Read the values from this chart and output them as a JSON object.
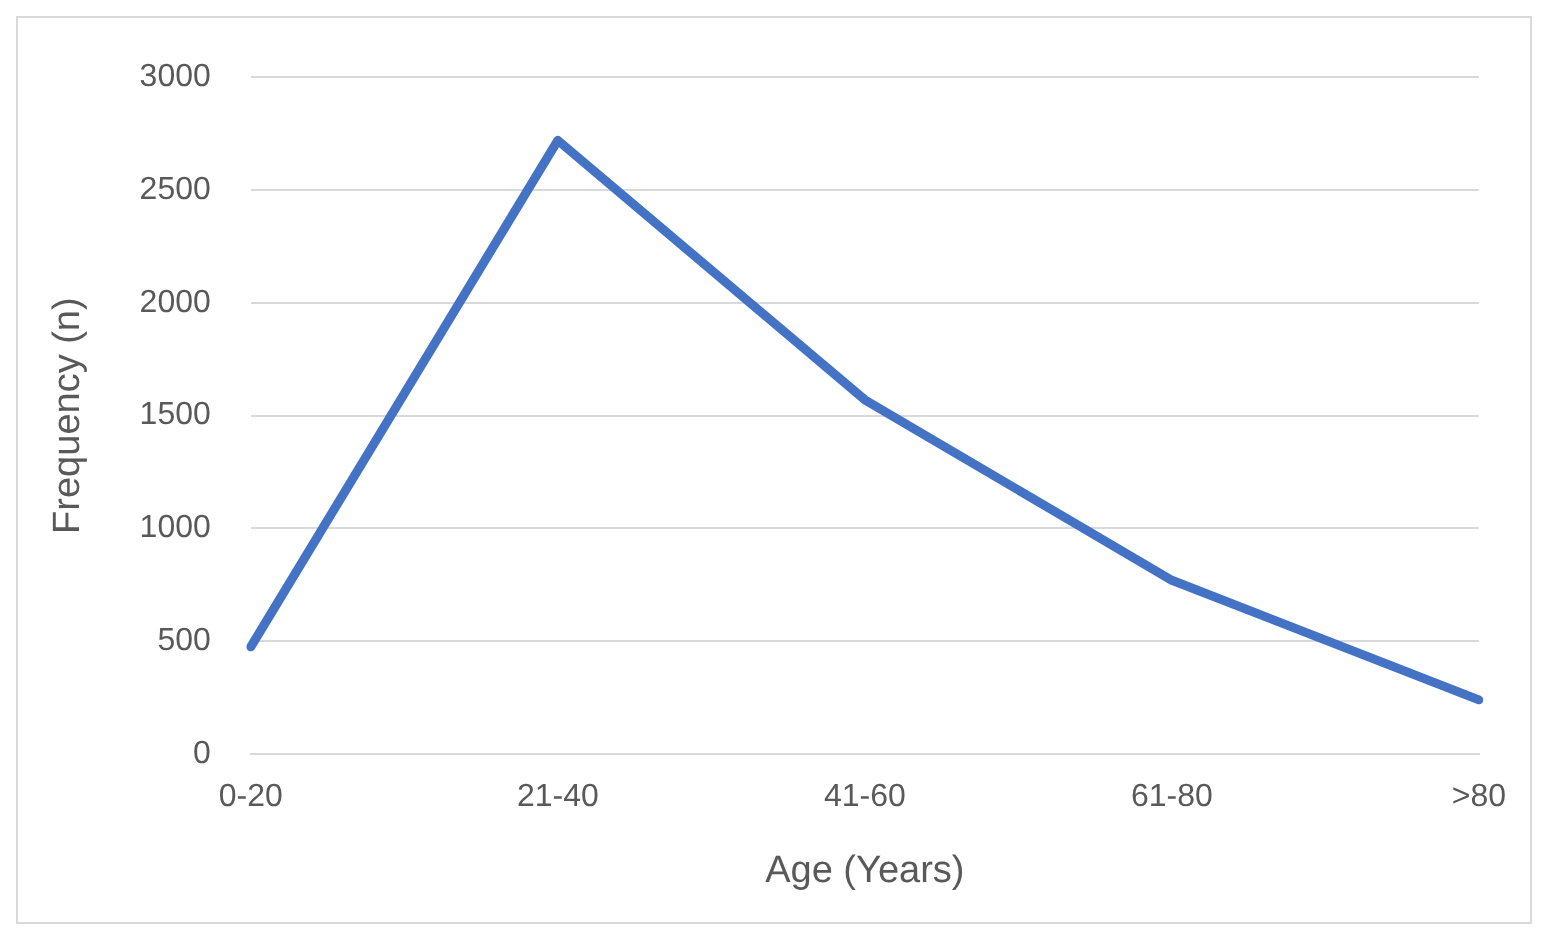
{
  "chart_data": {
    "type": "line",
    "xlabel": "Age (Years)",
    "ylabel": "Frequency (n)",
    "categories": [
      "0-20",
      "21-40",
      "41-60",
      "61-80",
      ">80"
    ],
    "series": [
      {
        "color": "#4472c4",
        "values": [
          475,
          2720,
          1570,
          770,
          240
        ]
      }
    ],
    "ylim": [
      0,
      3000
    ],
    "yticks": [
      0,
      500,
      1000,
      1500,
      2000,
      2500,
      3000
    ],
    "grid": "y",
    "legend": false,
    "marker": "none",
    "line_style": "solid"
  }
}
